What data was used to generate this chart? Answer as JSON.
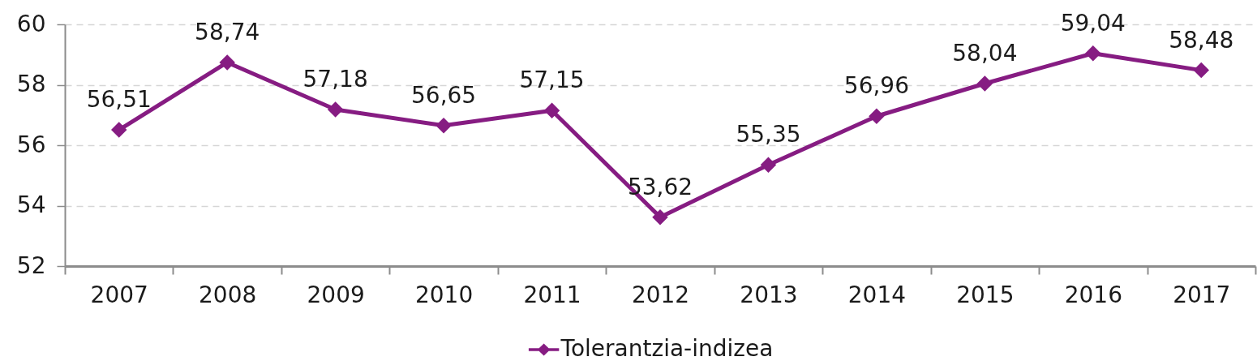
{
  "chart_data": {
    "type": "line",
    "categories": [
      "2007",
      "2008",
      "2009",
      "2010",
      "2011",
      "2012",
      "2013",
      "2014",
      "2015",
      "2016",
      "2017"
    ],
    "series": [
      {
        "name": "Tolerantzia-indizea",
        "color": "#861c82",
        "values": [
          56.51,
          58.74,
          57.18,
          56.65,
          57.15,
          53.62,
          55.35,
          56.96,
          58.04,
          59.04,
          58.48
        ],
        "value_labels": [
          "56,51",
          "58,74",
          "57,18",
          "56,65",
          "57,15",
          "53,62",
          "55,35",
          "56,96",
          "58,04",
          "59,04",
          "58,48"
        ]
      }
    ],
    "ylim": [
      52,
      60
    ],
    "yticks": [
      52,
      54,
      56,
      58,
      60
    ],
    "grid": "y",
    "legend": "bottom",
    "marker": "diamond"
  }
}
